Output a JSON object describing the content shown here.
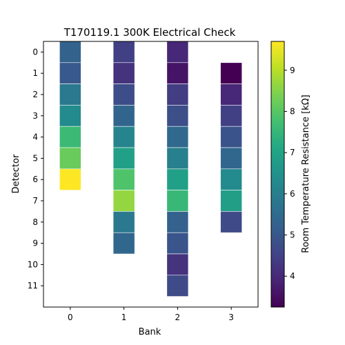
{
  "chart_data": {
    "type": "heatmap",
    "title": "T170119.1 300K Electrical Check",
    "xlabel": "Bank",
    "ylabel": "Detector",
    "x_categories": [
      "0",
      "1",
      "2",
      "3"
    ],
    "y_categories": [
      "0",
      "1",
      "2",
      "3",
      "4",
      "5",
      "6",
      "7",
      "8",
      "9",
      "10",
      "11"
    ],
    "xlim": [
      -0.5,
      3.5
    ],
    "ylim": [
      -0.5,
      12.0
    ],
    "y_inverted": true,
    "grid": false,
    "colormap": "viridis",
    "colorbar": {
      "label": "Room Temperature Resistance [kΩ]",
      "min": 3.25,
      "max": 9.7,
      "ticks": [
        4,
        5,
        6,
        7,
        8,
        9
      ]
    },
    "columns": [
      {
        "bank": 0,
        "detectors": [
          0,
          1,
          2,
          3,
          4,
          5,
          6
        ],
        "values": [
          5.3,
          5.05,
          5.85,
          6.3,
          7.6,
          8.2,
          9.7
        ]
      },
      {
        "bank": 1,
        "detectors": [
          0,
          1,
          2,
          3,
          4,
          5,
          6,
          7,
          8,
          9
        ],
        "values": [
          4.45,
          4.2,
          4.75,
          5.35,
          6.15,
          6.9,
          7.9,
          8.65,
          5.85,
          5.4
        ]
      },
      {
        "bank": 2,
        "detectors": [
          0,
          1,
          2,
          3,
          4,
          5,
          6,
          7,
          8,
          9,
          10,
          11
        ],
        "values": [
          3.95,
          3.6,
          4.4,
          4.8,
          5.45,
          6.0,
          6.9,
          7.55,
          5.25,
          4.95,
          4.2,
          4.7
        ]
      },
      {
        "bank": 3,
        "detectors": [
          1,
          2,
          3,
          4,
          5,
          6,
          7,
          8
        ],
        "values": [
          3.25,
          3.95,
          4.45,
          4.9,
          5.4,
          6.3,
          6.85,
          4.7
        ]
      }
    ]
  }
}
